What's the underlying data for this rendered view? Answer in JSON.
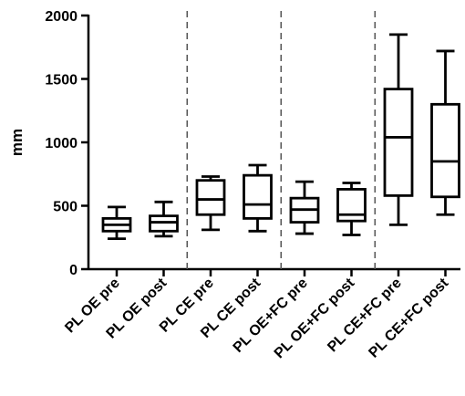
{
  "chart_data": {
    "type": "box",
    "title": "",
    "xlabel": "",
    "ylabel": "mm",
    "ylim": [
      0,
      2000
    ],
    "yticks": [
      "0",
      "500",
      "1000",
      "1500",
      "2000"
    ],
    "ytick_values": [
      0,
      500,
      1000,
      1500,
      2000
    ],
    "grid": false,
    "categories": [
      "PL OE pre",
      "PL OE post",
      "PL CE pre",
      "PL CE post",
      "PL OE+FC pre",
      "PL OE+FC post",
      "PL CE+FC pre",
      "PL CE+FC post"
    ],
    "boxes": [
      {
        "min": 240,
        "q1": 300,
        "median": 350,
        "q3": 400,
        "max": 490
      },
      {
        "min": 260,
        "q1": 300,
        "median": 370,
        "q3": 420,
        "max": 530
      },
      {
        "min": 310,
        "q1": 430,
        "median": 550,
        "q3": 700,
        "max": 730
      },
      {
        "min": 300,
        "q1": 400,
        "median": 510,
        "q3": 740,
        "max": 820
      },
      {
        "min": 280,
        "q1": 370,
        "median": 470,
        "q3": 560,
        "max": 690
      },
      {
        "min": 270,
        "q1": 380,
        "median": 430,
        "q3": 630,
        "max": 680
      },
      {
        "min": 350,
        "q1": 580,
        "median": 1040,
        "q3": 1420,
        "max": 1850
      },
      {
        "min": 430,
        "q1": 570,
        "median": 850,
        "q3": 1300,
        "max": 1720
      }
    ],
    "dividers_after": [
      2,
      4,
      6
    ]
  }
}
